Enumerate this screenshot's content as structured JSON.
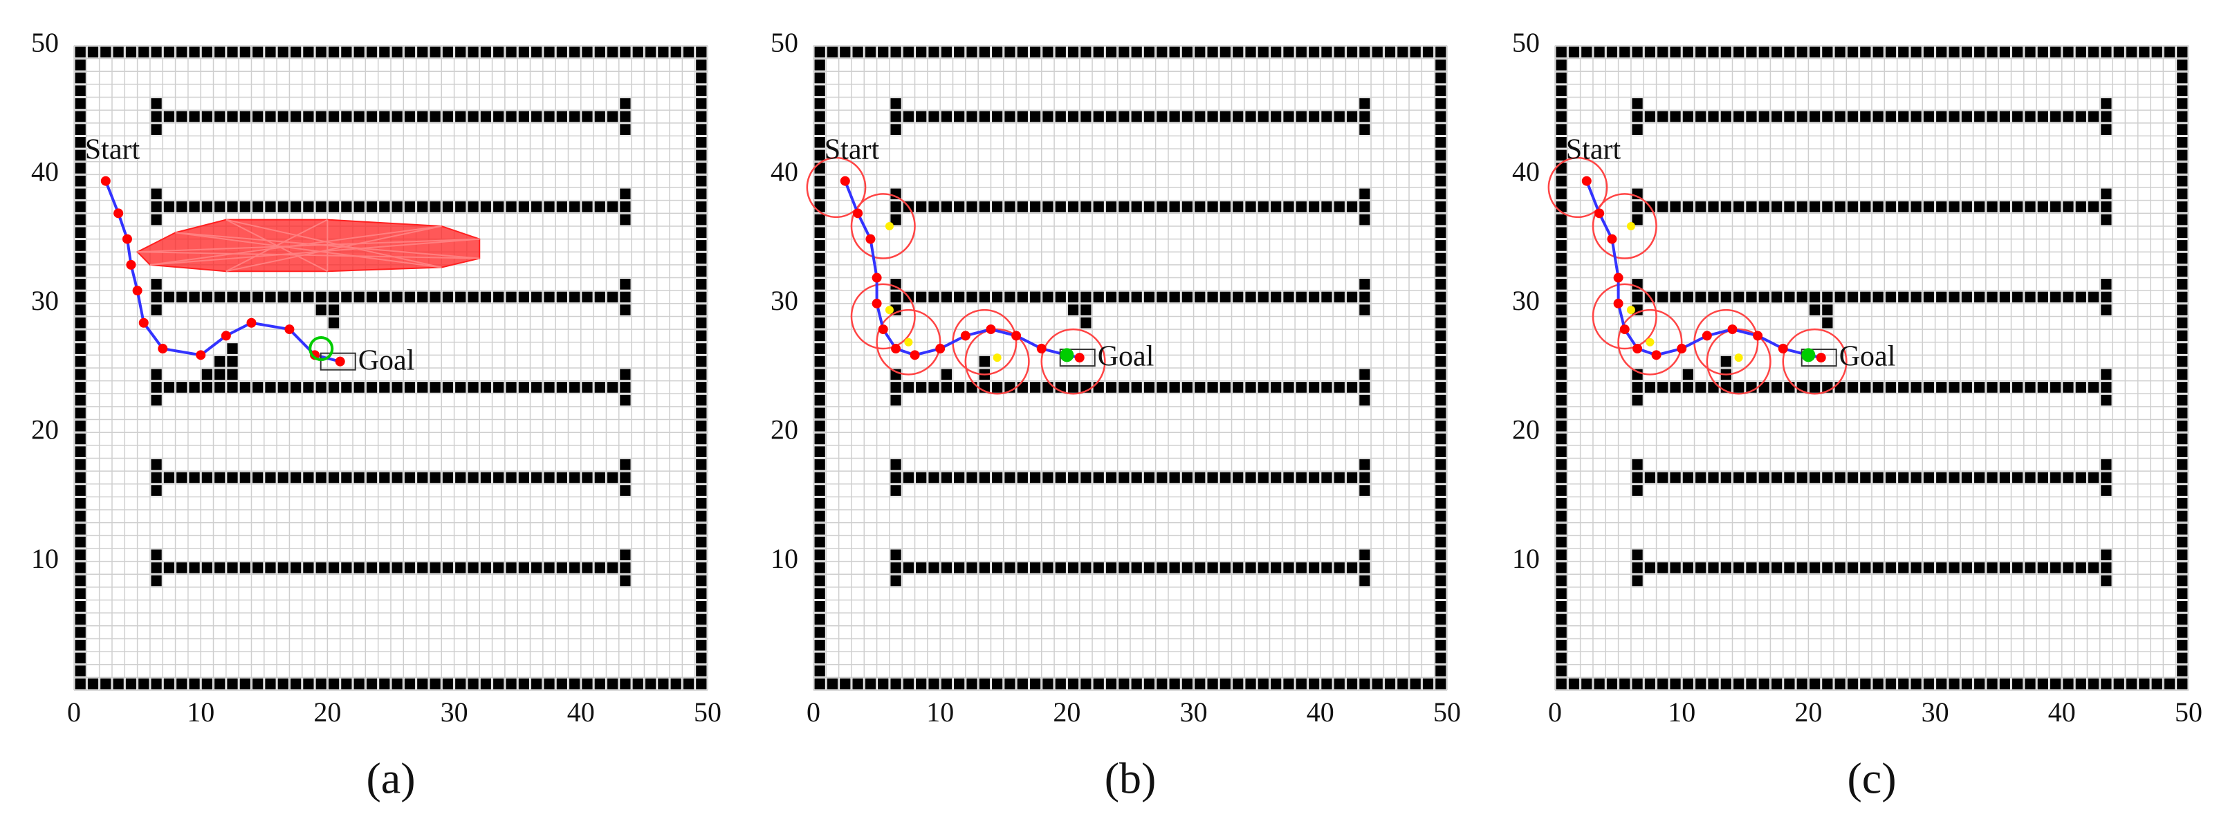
{
  "chart_data": [
    {
      "type": "line",
      "panel_label": "(a)",
      "start_label": "Start",
      "goal_label": "Goal",
      "xlim": [
        0,
        50
      ],
      "ylim": [
        0,
        50
      ],
      "xticks": [
        0,
        10,
        20,
        30,
        40,
        50
      ],
      "yticks": [
        10,
        20,
        30,
        40,
        50
      ],
      "grid": true,
      "walls": {
        "rows": [
          44,
          37,
          30,
          23,
          16,
          9
        ],
        "x": [
          6,
          44
        ]
      },
      "blocks": [
        [
          16,
          30
        ],
        [
          19,
          29
        ],
        [
          20,
          29
        ],
        [
          20,
          28
        ],
        [
          12,
          26
        ],
        [
          12,
          25
        ],
        [
          11,
          25
        ],
        [
          11,
          24
        ],
        [
          10,
          24
        ],
        [
          12,
          24
        ]
      ],
      "explored": {
        "color": "#ff2020",
        "x": [
          5,
          8,
          12,
          20,
          29,
          32,
          32,
          29,
          20,
          12,
          6
        ],
        "y": [
          34,
          35.5,
          36.5,
          36.5,
          36,
          35,
          33.5,
          32.8,
          32.5,
          32.5,
          33
        ]
      },
      "series": [
        {
          "color": "#3333ff",
          "marker_color": "#ff0000",
          "x": [
            2.5,
            3.5,
            4.2,
            4.5,
            5,
            5.5,
            7,
            10,
            12,
            14,
            17,
            19,
            21
          ],
          "y": [
            39.5,
            37,
            35,
            33,
            31,
            28.5,
            26.5,
            26,
            27.5,
            28.5,
            28,
            26,
            25.5
          ]
        }
      ],
      "goal_marker": {
        "color": "#00cc00",
        "x": 19.5,
        "y": 26.5
      }
    },
    {
      "type": "line",
      "panel_label": "(b)",
      "start_label": "Start",
      "goal_label": "Goal",
      "xlim": [
        0,
        50
      ],
      "ylim": [
        0,
        50
      ],
      "xticks": [
        0,
        10,
        20,
        30,
        40,
        50
      ],
      "yticks": [
        10,
        20,
        30,
        40,
        50
      ],
      "grid": true,
      "walls": {
        "rows": [
          44,
          37,
          30,
          23,
          16,
          9
        ],
        "x": [
          6,
          44
        ]
      },
      "blocks": [
        [
          17,
          30
        ],
        [
          20,
          29
        ],
        [
          21,
          29
        ],
        [
          21,
          28
        ],
        [
          13,
          25
        ],
        [
          13,
          24
        ],
        [
          10,
          24
        ]
      ],
      "circles": {
        "color": "#ff4444",
        "x": [
          1.8,
          5.5,
          5.5,
          7.5,
          13.5,
          14.5,
          20.5
        ],
        "y": [
          39,
          36,
          29,
          27,
          27,
          25.5,
          25.5
        ],
        "r": [
          2.3,
          2.5,
          2.5,
          2.5,
          2.5,
          2.5,
          2.5
        ]
      },
      "points": {
        "color": "#ffee00",
        "x": [
          6,
          6,
          7.5,
          14.5
        ],
        "y": [
          36,
          29.5,
          27,
          25.8
        ]
      },
      "series": [
        {
          "color": "#3333ff",
          "marker_color": "#ff0000",
          "x": [
            2.5,
            3.5,
            4.5,
            5,
            5,
            5.5,
            6.5,
            8,
            10,
            12,
            14,
            16,
            18,
            20,
            21
          ],
          "y": [
            39.5,
            37,
            35,
            32,
            30,
            28,
            26.5,
            26,
            26.5,
            27.5,
            28,
            27.5,
            26.5,
            26,
            25.8
          ]
        }
      ],
      "goal_marker": {
        "color": "#00cc00",
        "x": 20,
        "y": 26
      }
    },
    {
      "type": "line",
      "panel_label": "(c)",
      "start_label": "Start",
      "goal_label": "Goal",
      "xlim": [
        0,
        50
      ],
      "ylim": [
        0,
        50
      ],
      "xticks": [
        0,
        10,
        20,
        30,
        40,
        50
      ],
      "yticks": [
        10,
        20,
        30,
        40,
        50
      ],
      "grid": true,
      "walls": {
        "rows": [
          44,
          37,
          30,
          23,
          16,
          9
        ],
        "x": [
          6,
          44
        ]
      },
      "blocks": [
        [
          17,
          30
        ],
        [
          20,
          29
        ],
        [
          21,
          29
        ],
        [
          21,
          28
        ],
        [
          13,
          25
        ],
        [
          13,
          24
        ],
        [
          10,
          24
        ]
      ],
      "circles": {
        "color": "#ff4444",
        "x": [
          1.8,
          5.5,
          5.5,
          7.5,
          13.5,
          14.5,
          20.5
        ],
        "y": [
          39,
          36,
          29,
          27,
          27,
          25.5,
          25.5
        ],
        "r": [
          2.3,
          2.5,
          2.5,
          2.5,
          2.5,
          2.5,
          2.5
        ]
      },
      "points": {
        "color": "#ffee00",
        "x": [
          6,
          6,
          7.5,
          14.5
        ],
        "y": [
          36,
          29.5,
          27,
          25.8
        ]
      },
      "series": [
        {
          "color": "#3333ff",
          "marker_color": "#ff0000",
          "x": [
            2.5,
            3.5,
            4.5,
            5,
            5,
            5.5,
            6.5,
            8,
            10,
            12,
            14,
            16,
            18,
            20,
            21
          ],
          "y": [
            39.5,
            37,
            35,
            32,
            30,
            28,
            26.5,
            26,
            26.5,
            27.5,
            28,
            27.5,
            26.5,
            26,
            25.8
          ]
        }
      ],
      "goal_marker": {
        "color": "#00cc00",
        "x": 20,
        "y": 26
      }
    }
  ]
}
